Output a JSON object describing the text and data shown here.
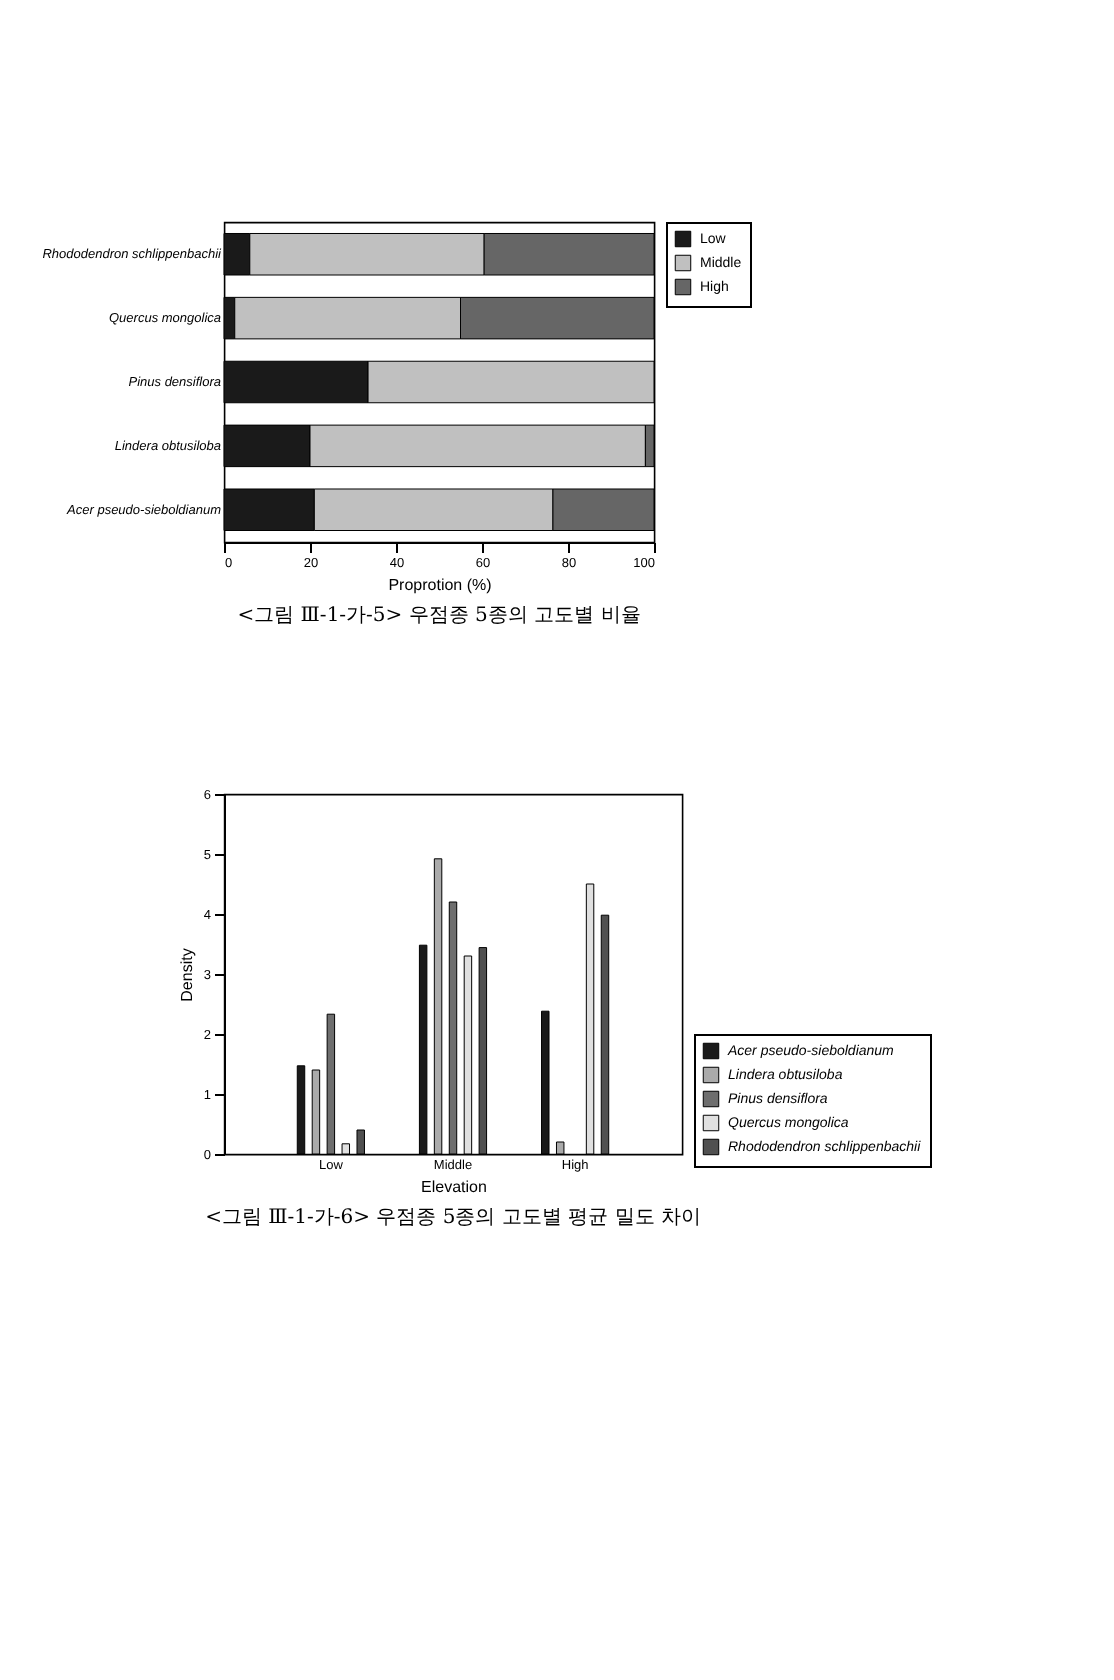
{
  "chart_data": [
    {
      "type": "bar",
      "orientation": "horizontal",
      "stacked": true,
      "title": "<그림 Ⅲ-1-가-5> 우점종 5종의 고도별 비율",
      "xlabel": "Proprotion (%)",
      "categories": [
        "Rhododendron schlippenbachii",
        "Quercus mongolica",
        "Pinus densiflora",
        "Lindera obtusiloba",
        "Acer pseudo-sieboldianum"
      ],
      "series": [
        {
          "name": "Low",
          "color": "#1a1a1a",
          "values": [
            6,
            2.5,
            33.5,
            20,
            21
          ]
        },
        {
          "name": "Middle",
          "color": "#c0c0c0",
          "values": [
            54.5,
            52.5,
            66.5,
            78,
            55.5
          ]
        },
        {
          "name": "High",
          "color": "#666666",
          "values": [
            39.5,
            45,
            null,
            2,
            23.5
          ]
        }
      ],
      "xlim": [
        0,
        100
      ],
      "xticks": [
        0,
        20,
        40,
        60,
        80,
        100
      ],
      "grid": false,
      "legend": "top right"
    },
    {
      "type": "bar",
      "title": "<그림 Ⅲ-1-가-6> 우점종 5종의 고도별 평균 밀도 차이",
      "xlabel": "Elevation",
      "ylabel": "Density",
      "categories": [
        "Low",
        "Middle",
        "High"
      ],
      "series": [
        {
          "name": "Acer pseudo-sieboldianum",
          "color": "#1a1a1a",
          "values": [
            1.47,
            3.48,
            2.38
          ]
        },
        {
          "name": "Lindera obtusiloba",
          "color": "#aaaaaa",
          "values": [
            1.4,
            4.92,
            0.2
          ]
        },
        {
          "name": "Pinus densiflora",
          "color": "#6e6e6e",
          "values": [
            2.33,
            4.2,
            null
          ]
        },
        {
          "name": "Quercus mongolica",
          "color": "#e0e0e0",
          "values": [
            0.17,
            3.3,
            4.5
          ]
        },
        {
          "name": "Rhododendron schlippenbachii",
          "color": "#505050",
          "values": [
            0.4,
            3.44,
            3.98
          ]
        }
      ],
      "ylim": [
        0,
        6
      ],
      "yticks": [
        0,
        1,
        2,
        3,
        4,
        5,
        6
      ],
      "grid": false,
      "legend": "bottom right"
    }
  ]
}
